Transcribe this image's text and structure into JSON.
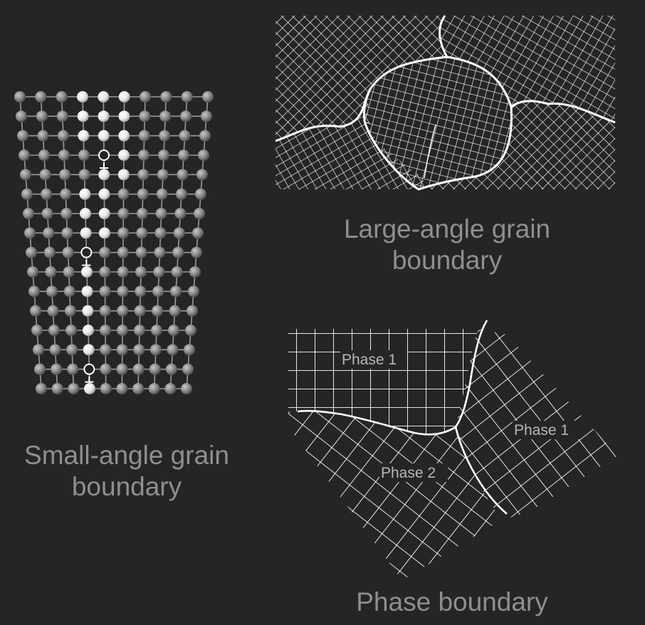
{
  "captions": {
    "small_angle": "Small-angle grain boundary",
    "large_angle": "Large-angle grain boundary",
    "phase": "Phase boundary"
  },
  "phase_labels": {
    "phase1_top": "Phase 1",
    "phase1_right": "Phase 1",
    "phase2": "Phase 2"
  },
  "colors": {
    "background": "#252525",
    "caption": "#8f8f8f",
    "grid_line": "#ffffff",
    "atom_dark": "#8a8a8a",
    "atom_bright": "#ffffff"
  }
}
